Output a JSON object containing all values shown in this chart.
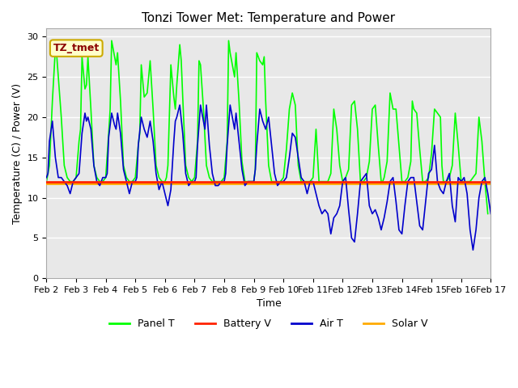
{
  "title": "Tonzi Tower Met: Temperature and Power",
  "xlabel": "Time",
  "ylabel": "Temperature (C) / Power (V)",
  "ylim": [
    0,
    31
  ],
  "yticks": [
    0,
    5,
    10,
    15,
    20,
    25,
    30
  ],
  "bg_color": "#e8e8e8",
  "fig_bg": "#ffffff",
  "annotation_text": "TZ_tmet",
  "annotation_bg": "#ffffcc",
  "annotation_edge": "#ccaa00",
  "annotation_textcolor": "#8b0000",
  "colors": {
    "panel_t": "#00ff00",
    "battery_v": "#ff2200",
    "air_t": "#0000cc",
    "solar_v": "#ffaa00"
  },
  "legend_labels": [
    "Panel T",
    "Battery V",
    "Air T",
    "Solar V"
  ],
  "x_tick_labels": [
    "Feb 2",
    "Feb 3",
    "Feb 4",
    "Feb 5",
    "Feb 6",
    "Feb 7",
    "Feb 8",
    "Feb 9",
    "Feb 10",
    "Feb 11",
    "Feb 12",
    "Feb 13",
    "Feb 14",
    "Feb 15",
    "Feb 16",
    "Feb 17"
  ],
  "x_tick_positions": [
    2,
    3,
    4,
    5,
    6,
    7,
    8,
    9,
    10,
    11,
    12,
    13,
    14,
    15,
    16,
    17
  ],
  "battery_v_level": 12.0,
  "solar_v_level": 11.8,
  "panel_t_x": [
    2.0,
    2.1,
    2.2,
    2.3,
    2.35,
    2.4,
    2.5,
    2.6,
    2.7,
    2.8,
    2.9,
    3.0,
    3.1,
    3.15,
    3.2,
    3.3,
    3.35,
    3.4,
    3.5,
    3.6,
    3.7,
    3.8,
    3.9,
    4.0,
    4.1,
    4.15,
    4.2,
    4.3,
    4.35,
    4.4,
    4.5,
    4.6,
    4.7,
    4.8,
    4.9,
    5.0,
    5.1,
    5.15,
    5.2,
    5.3,
    5.4,
    5.5,
    5.6,
    5.7,
    5.8,
    5.9,
    6.0,
    6.05,
    6.1,
    6.2,
    6.3,
    6.35,
    6.4,
    6.5,
    6.55,
    6.6,
    6.7,
    6.8,
    6.9,
    7.0,
    7.1,
    7.15,
    7.2,
    7.3,
    7.4,
    7.5,
    7.6,
    7.7,
    7.8,
    7.9,
    8.0,
    8.1,
    8.15,
    8.2,
    8.3,
    8.35,
    8.4,
    8.5,
    8.6,
    8.7,
    8.8,
    8.9,
    9.0,
    9.05,
    9.1,
    9.2,
    9.3,
    9.35,
    9.4,
    9.5,
    9.6,
    9.7,
    9.8,
    9.9,
    10.0,
    10.1,
    10.2,
    10.3,
    10.4,
    10.5,
    10.6,
    10.7,
    10.8,
    10.9,
    11.0,
    11.1,
    11.2,
    11.3,
    11.4,
    11.5,
    11.55,
    11.6,
    11.7,
    11.8,
    11.9,
    12.0,
    12.1,
    12.2,
    12.3,
    12.4,
    12.5,
    12.6,
    12.7,
    12.8,
    12.9,
    13.0,
    13.1,
    13.2,
    13.3,
    13.35,
    13.4,
    13.5,
    13.6,
    13.7,
    13.8,
    13.9,
    14.0,
    14.1,
    14.2,
    14.3,
    14.35,
    14.4,
    14.5,
    14.6,
    14.7,
    14.8,
    14.9,
    15.0,
    15.1,
    15.2,
    15.3,
    15.35,
    15.4,
    15.5,
    15.6,
    15.7,
    15.8,
    15.9,
    16.0,
    16.1,
    16.2,
    16.3,
    16.4,
    16.5,
    16.6,
    16.7,
    16.8,
    16.9,
    17.0
  ],
  "panel_t_y": [
    12.0,
    14.0,
    22.0,
    28.5,
    27.5,
    25.0,
    20.0,
    14.0,
    12.5,
    12.0,
    12.0,
    12.5,
    17.0,
    18.5,
    27.5,
    23.5,
    24.0,
    27.5,
    21.0,
    14.0,
    12.5,
    12.0,
    12.0,
    12.5,
    18.0,
    21.0,
    29.5,
    27.5,
    26.5,
    28.0,
    22.0,
    14.0,
    12.5,
    12.0,
    12.0,
    12.5,
    16.5,
    18.0,
    26.5,
    22.5,
    23.0,
    27.0,
    21.0,
    14.0,
    12.5,
    12.0,
    12.0,
    12.5,
    14.0,
    26.5,
    22.5,
    21.0,
    24.0,
    29.0,
    27.0,
    22.5,
    14.0,
    12.5,
    12.0,
    12.5,
    17.0,
    27.0,
    26.5,
    21.0,
    14.0,
    12.5,
    12.0,
    12.0,
    12.0,
    12.0,
    12.5,
    17.0,
    29.5,
    28.0,
    26.0,
    25.0,
    28.0,
    22.0,
    14.5,
    12.0,
    12.0,
    12.0,
    12.0,
    13.5,
    28.0,
    27.0,
    26.5,
    27.5,
    22.0,
    14.0,
    12.0,
    12.0,
    12.0,
    12.0,
    12.5,
    16.0,
    21.0,
    23.0,
    21.5,
    14.0,
    12.0,
    12.0,
    12.0,
    12.0,
    12.5,
    18.5,
    12.0,
    12.0,
    12.0,
    12.0,
    12.5,
    13.0,
    21.0,
    18.5,
    14.0,
    12.0,
    12.5,
    13.5,
    21.5,
    22.0,
    18.5,
    12.0,
    12.0,
    12.5,
    14.5,
    21.0,
    21.5,
    16.5,
    12.0,
    12.0,
    12.5,
    14.5,
    23.0,
    21.0,
    21.0,
    16.5,
    12.0,
    12.0,
    12.5,
    14.5,
    22.0,
    21.0,
    20.5,
    16.0,
    12.0,
    12.0,
    12.5,
    15.5,
    21.0,
    20.5,
    20.0,
    14.0,
    12.0,
    12.0,
    12.5,
    14.0,
    20.5,
    16.5,
    12.0,
    12.0,
    12.0,
    12.0,
    12.5,
    13.0,
    20.0,
    17.0,
    12.0,
    8.0
  ],
  "air_t_x": [
    2.0,
    2.05,
    2.1,
    2.2,
    2.3,
    2.4,
    2.5,
    2.6,
    2.7,
    2.8,
    2.9,
    3.0,
    3.1,
    3.2,
    3.3,
    3.35,
    3.4,
    3.5,
    3.6,
    3.7,
    3.8,
    3.9,
    4.0,
    4.05,
    4.1,
    4.2,
    4.3,
    4.35,
    4.4,
    4.5,
    4.6,
    4.7,
    4.8,
    4.9,
    5.0,
    5.05,
    5.1,
    5.2,
    5.3,
    5.4,
    5.5,
    5.6,
    5.7,
    5.8,
    5.9,
    6.0,
    6.1,
    6.2,
    6.3,
    6.35,
    6.4,
    6.5,
    6.6,
    6.7,
    6.8,
    6.9,
    7.0,
    7.05,
    7.1,
    7.2,
    7.3,
    7.35,
    7.4,
    7.5,
    7.6,
    7.7,
    7.8,
    7.9,
    8.0,
    8.05,
    8.1,
    8.2,
    8.3,
    8.35,
    8.4,
    8.5,
    8.6,
    8.7,
    8.8,
    8.9,
    9.0,
    9.05,
    9.1,
    9.2,
    9.3,
    9.4,
    9.5,
    9.6,
    9.7,
    9.8,
    9.9,
    10.0,
    10.1,
    10.2,
    10.3,
    10.4,
    10.5,
    10.6,
    10.7,
    10.8,
    10.9,
    11.0,
    11.1,
    11.2,
    11.3,
    11.4,
    11.5,
    11.6,
    11.7,
    11.8,
    11.9,
    12.0,
    12.1,
    12.2,
    12.3,
    12.4,
    12.5,
    12.6,
    12.7,
    12.8,
    12.9,
    13.0,
    13.1,
    13.2,
    13.3,
    13.4,
    13.5,
    13.6,
    13.7,
    13.8,
    13.9,
    14.0,
    14.1,
    14.2,
    14.3,
    14.4,
    14.5,
    14.6,
    14.7,
    14.8,
    14.9,
    15.0,
    15.1,
    15.2,
    15.3,
    15.4,
    15.5,
    15.6,
    15.7,
    15.8,
    15.9,
    16.0,
    16.1,
    16.2,
    16.3,
    16.4,
    16.5,
    16.6,
    16.7,
    16.8,
    16.9,
    17.0
  ],
  "air_t_y": [
    12.5,
    13.0,
    17.0,
    19.5,
    15.0,
    12.5,
    12.5,
    12.0,
    11.5,
    10.5,
    12.0,
    12.5,
    13.0,
    18.0,
    20.5,
    19.5,
    20.0,
    18.5,
    14.0,
    12.0,
    11.5,
    12.5,
    12.5,
    13.0,
    17.5,
    20.5,
    19.0,
    18.5,
    20.5,
    18.0,
    13.5,
    12.0,
    10.5,
    12.0,
    12.0,
    12.5,
    16.5,
    20.0,
    18.5,
    17.5,
    19.5,
    17.0,
    13.0,
    11.0,
    12.0,
    10.5,
    9.0,
    11.0,
    17.0,
    19.5,
    20.0,
    21.5,
    18.0,
    13.0,
    11.5,
    12.0,
    12.0,
    12.5,
    16.5,
    21.5,
    19.5,
    18.5,
    21.5,
    16.5,
    13.0,
    11.5,
    11.5,
    12.0,
    12.0,
    13.0,
    16.5,
    21.5,
    19.5,
    18.5,
    20.5,
    17.0,
    13.5,
    11.5,
    12.0,
    12.0,
    12.0,
    13.5,
    16.5,
    21.0,
    19.5,
    18.5,
    20.0,
    16.5,
    13.0,
    11.5,
    12.0,
    12.0,
    12.5,
    15.0,
    18.0,
    17.5,
    15.0,
    12.5,
    12.0,
    10.5,
    12.0,
    12.0,
    10.5,
    9.0,
    8.0,
    8.5,
    8.0,
    5.5,
    7.5,
    8.0,
    9.0,
    12.0,
    12.5,
    8.5,
    5.0,
    4.5,
    8.0,
    12.0,
    12.5,
    13.0,
    9.0,
    8.0,
    8.5,
    7.5,
    6.0,
    7.5,
    9.5,
    12.0,
    12.5,
    9.5,
    6.0,
    5.5,
    9.0,
    12.0,
    12.5,
    12.5,
    9.5,
    6.5,
    6.0,
    9.5,
    13.0,
    13.5,
    16.5,
    12.0,
    11.0,
    10.5,
    12.0,
    13.0,
    9.0,
    7.0,
    12.5,
    12.0,
    12.5,
    10.5,
    6.0,
    3.5,
    6.0,
    10.0,
    12.0,
    12.5,
    10.5,
    8.0
  ]
}
